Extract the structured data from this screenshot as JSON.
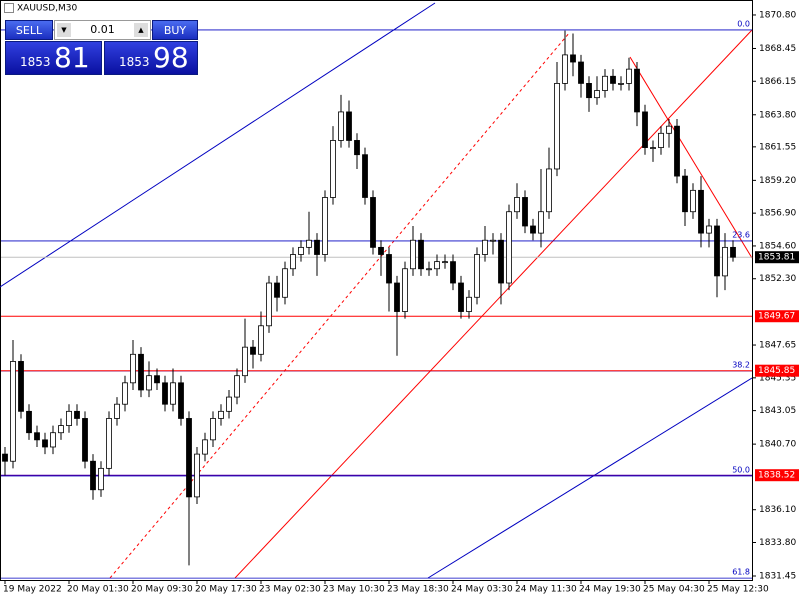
{
  "chart_data": {
    "type": "candlestick",
    "symbol": "XAUUSD,M30",
    "trade_panel": {
      "sell": "SELL",
      "buy": "BUY",
      "volume": "0.01",
      "bid_big": "1853",
      "bid_small": "81",
      "ask_big": "1853",
      "ask_small": "98"
    },
    "categories": [
      "19 May 2022",
      null,
      null,
      null,
      null,
      null,
      null,
      null,
      "20 May 01:30",
      null,
      null,
      null,
      null,
      null,
      null,
      null,
      "20 May 09:30",
      null,
      null,
      null,
      null,
      null,
      null,
      null,
      "20 May 17:30",
      null,
      null,
      null,
      null,
      null,
      null,
      null,
      "23 May 02:30",
      null,
      null,
      null,
      null,
      null,
      null,
      null,
      "23 May 10:30",
      null,
      null,
      null,
      null,
      null,
      null,
      null,
      "23 May 18:30",
      null,
      null,
      null,
      null,
      null,
      null,
      null,
      "24 May 03:30",
      null,
      null,
      null,
      null,
      null,
      null,
      null,
      "24 May 11:30",
      null,
      null,
      null,
      null,
      null,
      null,
      null,
      "24 May 19:30",
      null,
      null,
      null,
      null,
      null,
      null,
      null,
      "25 May 04:30",
      null,
      null,
      null,
      null,
      null,
      null,
      null,
      "25 May 12:30",
      null,
      null,
      null
    ],
    "open": [
      1840,
      1839.5,
      1846.5,
      1843,
      1841.5,
      1841,
      1840.5,
      1841.5,
      1842,
      1843,
      1842.5,
      1839.5,
      1837.5,
      1839,
      1842.5,
      1843.5,
      1845,
      1847,
      1844.5,
      1845.5,
      1845,
      1843.5,
      1845,
      1842.5,
      1837,
      1840,
      1841,
      1842.5,
      1843,
      1844,
      1845.5,
      1847.5,
      1847,
      1849,
      1852,
      1851,
      1853,
      1854,
      1854.5,
      1855,
      1854,
      1858,
      1862,
      1864,
      1862,
      1861,
      1858,
      1854.5,
      1854,
      1852,
      1850,
      1853,
      1855,
      1853,
      1853,
      1853.5,
      1853.5,
      1852,
      1850,
      1851,
      1854,
      1855,
      1855,
      1852,
      1857,
      1858,
      1856,
      1855.5,
      1857,
      1860,
      1866,
      1868,
      1867.5,
      1866,
      1865,
      1865.5,
      1866.5,
      1866,
      1866,
      1867,
      1864,
      1861.5,
      1861.5,
      1862.5,
      1863,
      1859.5,
      1857,
      1858.5,
      1855.5,
      1856,
      1852.5,
      1854.5
    ],
    "high": [
      1840.5,
      1848,
      1847,
      1843.5,
      1842,
      1841.5,
      1842,
      1842.5,
      1843.5,
      1843.5,
      1843,
      1840,
      1839.5,
      1843,
      1844,
      1845.5,
      1848,
      1847.5,
      1846.5,
      1846,
      1845.5,
      1846,
      1845.5,
      1843,
      1840.5,
      1841.5,
      1843,
      1843.5,
      1844.5,
      1846,
      1849.5,
      1848,
      1850,
      1852.5,
      1852.5,
      1853.5,
      1854.5,
      1855,
      1857,
      1855.5,
      1858.5,
      1863,
      1865.2,
      1864.8,
      1862.5,
      1861.5,
      1858.5,
      1855,
      1854.5,
      1852.5,
      1853.5,
      1856,
      1855.5,
      1853.5,
      1854,
      1854,
      1854,
      1852.5,
      1851.5,
      1854.5,
      1856,
      1855.5,
      1855.5,
      1857.5,
      1859,
      1858.5,
      1856.5,
      1860,
      1861.5,
      1867.5,
      1869.7,
      1869.5,
      1868,
      1866.5,
      1866.5,
      1867,
      1867,
      1866.5,
      1867.8,
      1867.5,
      1864.5,
      1862,
      1863,
      1863.5,
      1863.5,
      1860,
      1859,
      1859.5,
      1856.5,
      1856.5,
      1855.5,
      1855
    ],
    "low": [
      1838.5,
      1839,
      1842.5,
      1841,
      1840.5,
      1840,
      1840,
      1841,
      1841.5,
      1842,
      1839,
      1836.8,
      1837,
      1838.5,
      1842,
      1843,
      1844.5,
      1844,
      1844,
      1844.5,
      1843,
      1843,
      1842,
      1832.2,
      1836.5,
      1839.5,
      1840.5,
      1842,
      1842.5,
      1843.5,
      1845,
      1846,
      1846.5,
      1848.5,
      1850,
      1850.5,
      1852.5,
      1853.5,
      1854,
      1852.5,
      1853.5,
      1857.5,
      1861.5,
      1861.5,
      1860,
      1857.5,
      1854,
      1852.5,
      1850,
      1846.9,
      1849.5,
      1852.5,
      1852.5,
      1852.5,
      1852.5,
      1853,
      1851.5,
      1849.5,
      1849.5,
      1850.5,
      1853.5,
      1854,
      1850.5,
      1851.5,
      1856.5,
      1855.5,
      1855,
      1854.5,
      1856.5,
      1859.5,
      1865.5,
      1866.5,
      1865,
      1864,
      1864.5,
      1865,
      1865.5,
      1865.5,
      1865.5,
      1863,
      1861,
      1860.5,
      1861,
      1861.5,
      1859,
      1856,
      1856.5,
      1854.5,
      1854.5,
      1851,
      1851.5,
      1853.5
    ],
    "close": [
      1839.5,
      1846.5,
      1843,
      1841.5,
      1841,
      1840.5,
      1841.5,
      1842,
      1843,
      1842.5,
      1839.5,
      1837.5,
      1839,
      1842.5,
      1843.5,
      1845,
      1847,
      1844.5,
      1845.5,
      1845,
      1843.5,
      1845,
      1842.5,
      1837,
      1840,
      1841,
      1842.5,
      1843,
      1844,
      1845.5,
      1847.5,
      1847,
      1849,
      1852,
      1851,
      1853,
      1854,
      1854.5,
      1855,
      1854,
      1858,
      1862,
      1864,
      1862,
      1861,
      1858,
      1854.5,
      1854,
      1852,
      1850,
      1853,
      1855,
      1853,
      1853,
      1853.5,
      1853.5,
      1852,
      1850,
      1851,
      1854,
      1855,
      1855,
      1852,
      1857,
      1858,
      1856,
      1855.5,
      1857,
      1860,
      1866,
      1868,
      1867.5,
      1866,
      1865,
      1865.5,
      1866.5,
      1866,
      1866,
      1867,
      1864,
      1861.5,
      1861.5,
      1862.5,
      1863,
      1859.5,
      1857,
      1858.5,
      1855.5,
      1856,
      1852.5,
      1854.5,
      1853.81
    ],
    "ylim": [
      1831.17,
      1871.85
    ],
    "yticks": [
      {
        "value": 1870.8,
        "label": "1870.80"
      },
      1868.45,
      1866.15,
      {
        "value": 1863.8,
        "label": "1863.80"
      },
      1861.55,
      {
        "value": 1859.2,
        "label": "1859.20"
      },
      {
        "value": 1856.9,
        "label": "1856.90"
      },
      {
        "value": 1854.6,
        "label": "1854.60"
      },
      {
        "value": 1852.3,
        "label": "1852.30"
      },
      1847.65,
      1845.35,
      1843.05,
      {
        "value": 1840.7,
        "label": "1840.70"
      },
      {
        "value": 1836.1,
        "label": "1836.10"
      },
      {
        "value": 1833.8,
        "label": "1833.80"
      },
      1831.45
    ],
    "fib_levels": [
      {
        "label": "0.0",
        "value": 1869.75
      },
      {
        "label": "23.6",
        "value": 1854.95
      },
      {
        "label": "38.2",
        "value": 1845.83
      },
      {
        "label": "50.0",
        "value": 1838.47
      },
      {
        "label": "61.8",
        "value": 1831.3
      }
    ],
    "price_lines": [
      {
        "value": 1853.81,
        "color": "#c0c0c0",
        "box": "#000000"
      },
      {
        "value": 1849.67,
        "color": "#ff0000",
        "box": "#ff0000"
      },
      {
        "value": 1845.85,
        "color": "#ff0000",
        "box": "#ff0000"
      },
      {
        "value": 1838.52,
        "color": "#5000a0",
        "box": "#ff0000"
      }
    ],
    "up_color": "#ffffff",
    "down_color": "#000000",
    "fib_color": "#0000c0"
  }
}
